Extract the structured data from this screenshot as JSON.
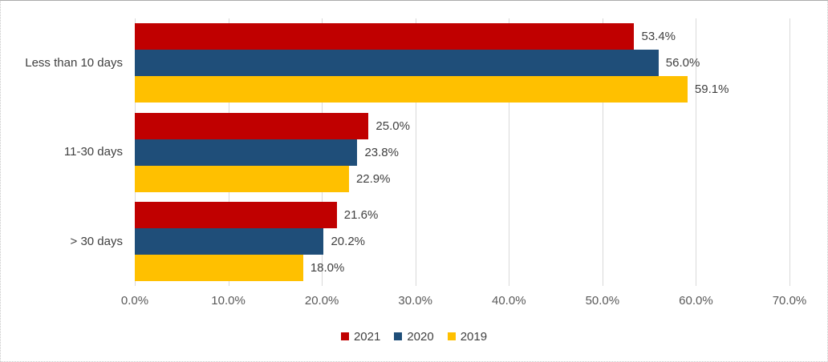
{
  "chart_data": {
    "type": "bar",
    "orientation": "horizontal",
    "title": "",
    "categories": [
      "Less than 10 days",
      "11-30 days",
      "> 30 days"
    ],
    "series": [
      {
        "name": "2021",
        "color": "#C00000",
        "values": [
          53.4,
          25.0,
          21.6
        ],
        "labels": [
          "53.4%",
          "25.0%",
          "21.6%"
        ]
      },
      {
        "name": "2020",
        "color": "#1F4E79",
        "values": [
          56.0,
          23.8,
          20.2
        ],
        "labels": [
          "56.0%",
          "23.8%",
          "20.2%"
        ]
      },
      {
        "name": "2019",
        "color": "#FFC000",
        "values": [
          59.1,
          22.9,
          18.0
        ],
        "labels": [
          "59.1%",
          "22.9%",
          "18.0%"
        ]
      }
    ],
    "x_axis": {
      "min": 0,
      "max": 70,
      "ticks": [
        {
          "value": 0,
          "label": "0.0%"
        },
        {
          "value": 10,
          "label": "10.0%"
        },
        {
          "value": 20,
          "label": "20.0%"
        },
        {
          "value": 30,
          "label": "30.0%"
        },
        {
          "value": 40,
          "label": "40.0%"
        },
        {
          "value": 50,
          "label": "50.0%"
        },
        {
          "value": 60,
          "label": "60.0%"
        },
        {
          "value": 70,
          "label": "70.0%"
        }
      ]
    },
    "legend": {
      "position": "bottom",
      "entries": [
        "2021",
        "2020",
        "2019"
      ]
    },
    "grid": true,
    "colors": {
      "gridline": "#D9D9D9",
      "axis_text": "#595959",
      "label_text": "#404040",
      "background": "#FFFFFF"
    }
  }
}
